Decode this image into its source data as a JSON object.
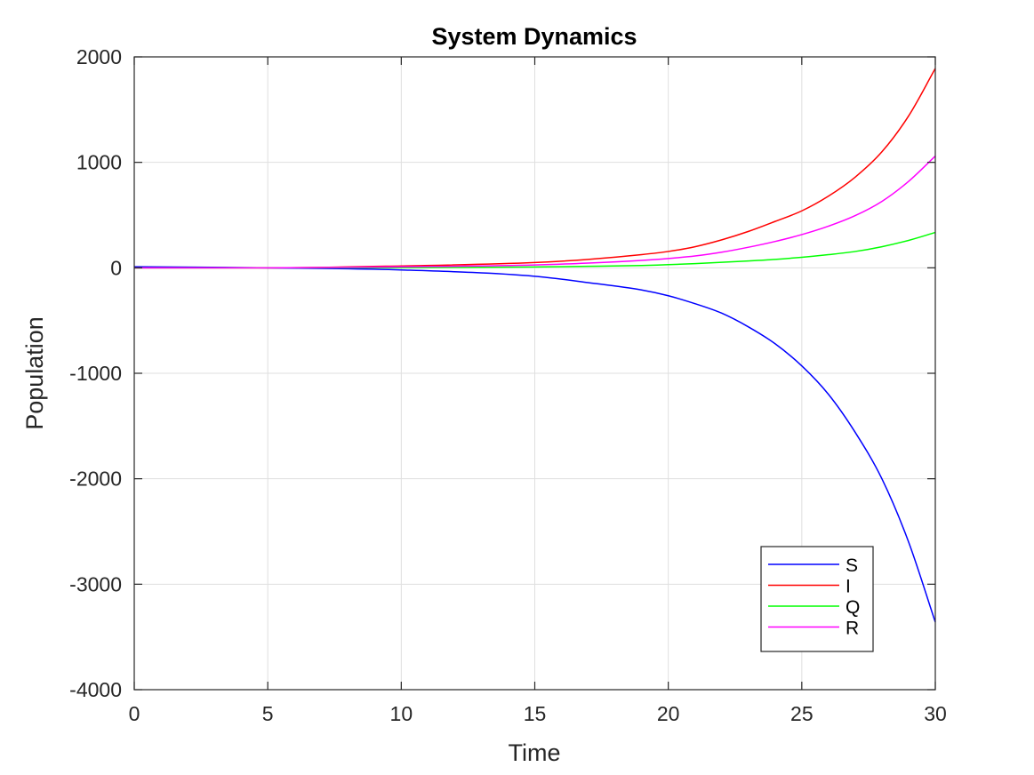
{
  "chart_data": {
    "type": "line",
    "title": "System Dynamics",
    "xlabel": "Time",
    "ylabel": "Population",
    "xlim": [
      0,
      30
    ],
    "ylim": [
      -4000,
      2000
    ],
    "xticks": [
      0,
      5,
      10,
      15,
      20,
      25,
      30
    ],
    "yticks": [
      -4000,
      -3000,
      -2000,
      -1000,
      0,
      1000,
      2000
    ],
    "xtick_labels": [
      "0",
      "5",
      "10",
      "15",
      "20",
      "25",
      "30"
    ],
    "ytick_labels": [
      "-4000",
      "-3000",
      "-2000",
      "-1000",
      "0",
      "1000",
      "2000"
    ],
    "grid": true,
    "legend_position": "bottom-right",
    "x": [
      0,
      5,
      10,
      15,
      17,
      19,
      20,
      21,
      22,
      23,
      24,
      25,
      26,
      27,
      28,
      29,
      30
    ],
    "series": [
      {
        "name": "S",
        "color": "#0000ff",
        "values": [
          10,
          0,
          -20,
          -80,
          -140,
          -210,
          -265,
          -340,
          -430,
          -560,
          -720,
          -930,
          -1200,
          -1560,
          -2000,
          -2600,
          -3360
        ]
      },
      {
        "name": "I",
        "color": "#ff0000",
        "values": [
          0,
          0,
          18,
          50,
          80,
          125,
          155,
          200,
          265,
          345,
          440,
          540,
          680,
          860,
          1100,
          1440,
          1890
        ]
      },
      {
        "name": "Q",
        "color": "#00ff00",
        "values": [
          0,
          0,
          2,
          8,
          14,
          22,
          30,
          40,
          52,
          65,
          80,
          100,
          125,
          155,
          200,
          260,
          335
        ]
      },
      {
        "name": "R",
        "color": "#ff00ff",
        "values": [
          0,
          0,
          10,
          27,
          45,
          70,
          88,
          112,
          148,
          195,
          250,
          315,
          395,
          495,
          630,
          820,
          1060
        ]
      }
    ]
  }
}
